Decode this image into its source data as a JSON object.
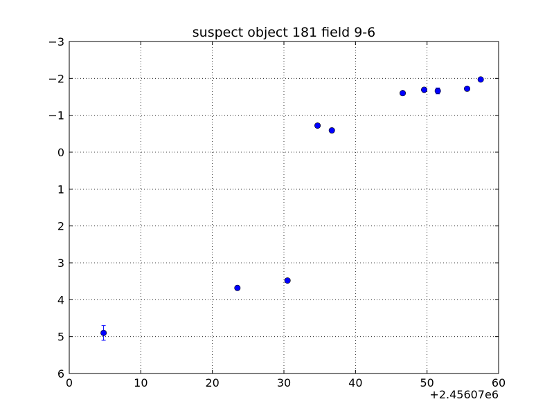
{
  "chart_data": {
    "type": "scatter",
    "title": "suspect object 181 field 9-6",
    "xlabel": "",
    "ylabel": "",
    "x_offset_label": "+2.45607e6",
    "xlim": [
      0,
      60
    ],
    "ylim": [
      6,
      -3
    ],
    "y_inverted": true,
    "grid": true,
    "x_ticks": [
      0,
      10,
      20,
      30,
      40,
      50,
      60
    ],
    "y_ticks": [
      -3,
      -2,
      -1,
      0,
      1,
      2,
      3,
      4,
      5,
      6
    ],
    "x_tick_labels": [
      "0",
      "10",
      "20",
      "30",
      "40",
      "50",
      "60"
    ],
    "y_tick_labels": [
      "−3",
      "−2",
      "−1",
      "0",
      "1",
      "2",
      "3",
      "4",
      "5",
      "6"
    ],
    "marker_color": "#0000ff",
    "points": [
      {
        "x": 4.8,
        "y": 4.9,
        "err": 0.2
      },
      {
        "x": 23.5,
        "y": 3.68,
        "err": 0.05
      },
      {
        "x": 30.5,
        "y": 3.48,
        "err": 0.04
      },
      {
        "x": 34.7,
        "y": -0.72,
        "err": 0.04
      },
      {
        "x": 36.7,
        "y": -0.59,
        "err": 0.04
      },
      {
        "x": 46.6,
        "y": -1.6,
        "err": 0.04
      },
      {
        "x": 49.6,
        "y": -1.69,
        "err": 0.04
      },
      {
        "x": 51.5,
        "y": -1.66,
        "err": 0.08
      },
      {
        "x": 55.6,
        "y": -1.72,
        "err": 0.04
      },
      {
        "x": 57.5,
        "y": -1.97,
        "err": 0.05
      }
    ]
  }
}
